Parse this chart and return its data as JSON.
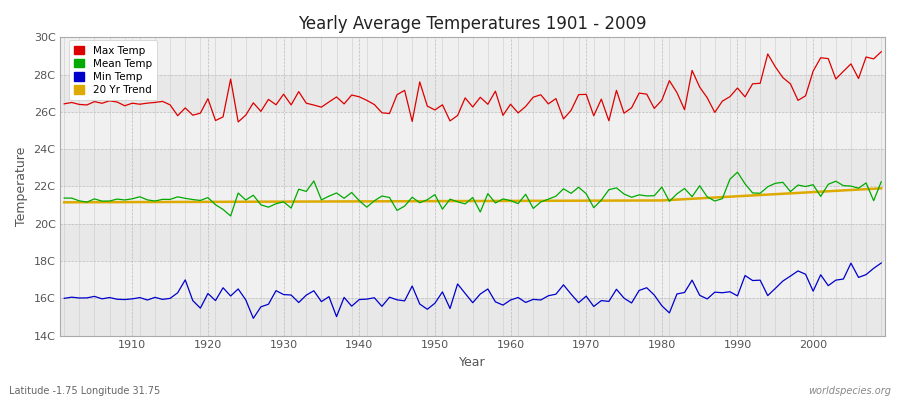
{
  "title": "Yearly Average Temperatures 1901 - 2009",
  "xlabel": "Year",
  "ylabel": "Temperature",
  "year_start": 1901,
  "year_end": 2009,
  "ylim": [
    14,
    30
  ],
  "yticks": [
    14,
    16,
    18,
    20,
    22,
    24,
    26,
    28,
    30
  ],
  "ytick_labels": [
    "14C",
    "16C",
    "18C",
    "20C",
    "22C",
    "24C",
    "26C",
    "28C",
    "30C"
  ],
  "background_color": "#ffffff",
  "plot_bg_color": "#f0f0f0",
  "band_colors": [
    "#e8e8e8",
    "#f0f0f0"
  ],
  "grid_color": "#ffffff",
  "legend_colors": [
    "#dd0000",
    "#00aa00",
    "#0000cc",
    "#ddaa00"
  ],
  "legend_labels": [
    "Max Temp",
    "Mean Temp",
    "Min Temp",
    "20 Yr Trend"
  ],
  "watermark": "worldspecies.org",
  "lat_lon_label": "Latitude -1.75 Longitude 31.75",
  "font_color": "#555555",
  "title_color": "#222222"
}
